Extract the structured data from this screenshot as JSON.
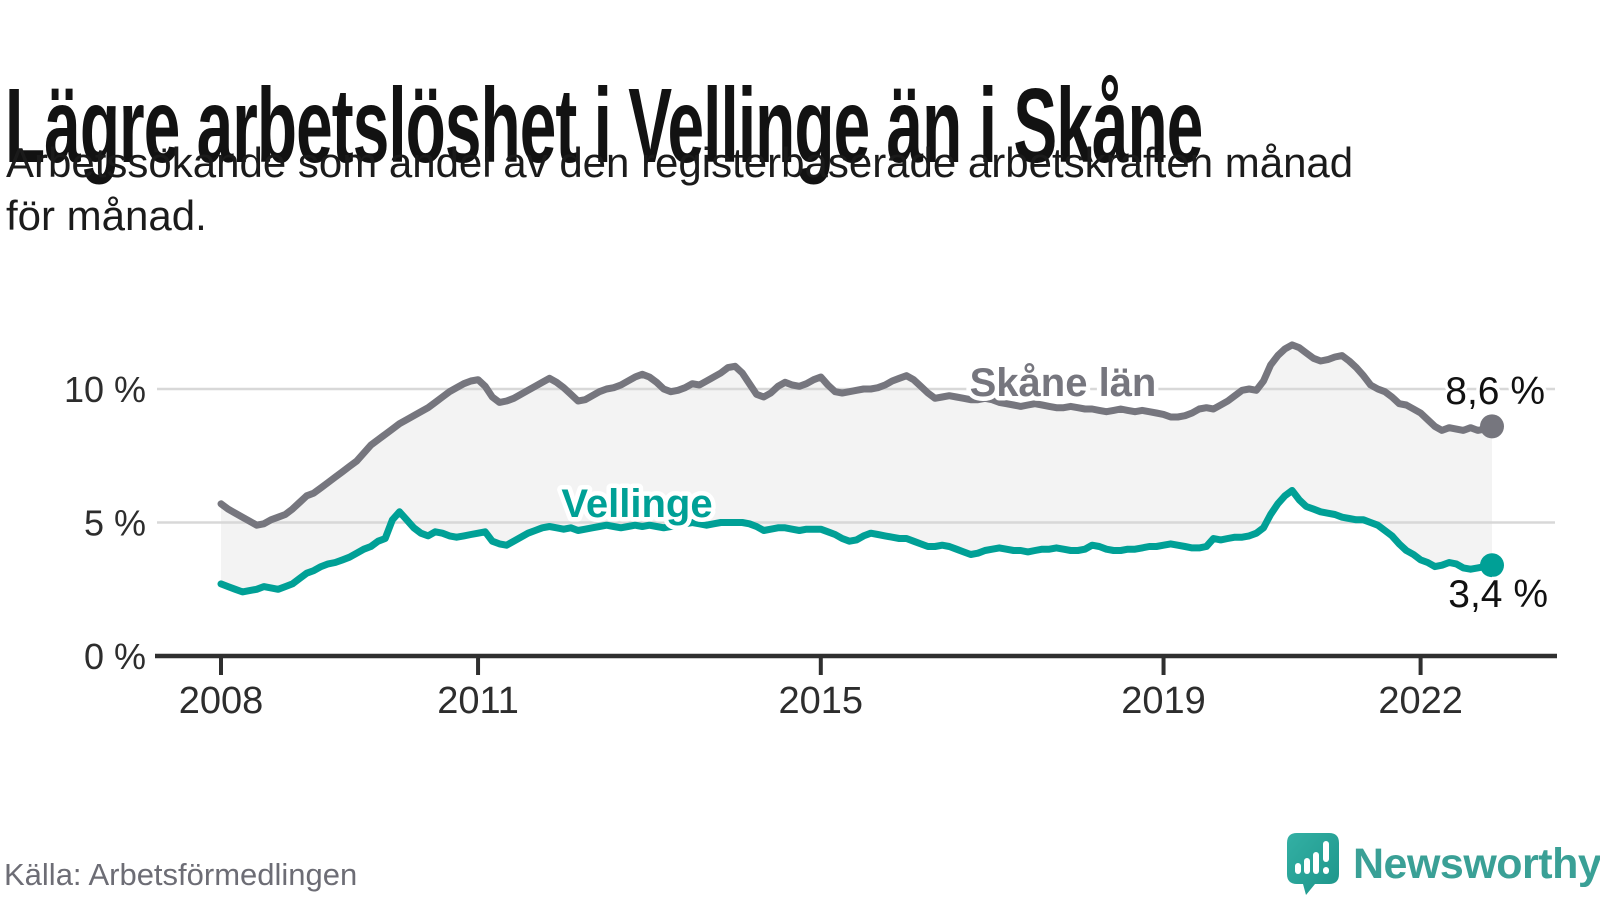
{
  "header": {
    "title": "Lägre arbetslöshet i Vellinge än i Skåne",
    "subtitle_lines": [
      "Arbetssökande som andel av den registerbaserade arbetskraften månad",
      "för månad."
    ]
  },
  "footer": {
    "source": "Källa: Arbetsförmedlingen",
    "brand_name": "Newsworthy"
  },
  "colors": {
    "skane_line": "#76767e",
    "vellinge_line": "#00a096",
    "fill_between": "#f3f3f3",
    "gridline": "#d8d8d8",
    "axis": "#2f2f2f",
    "tick_label": "#2d2d2d",
    "end_label": "#111111",
    "brand_teal": "#3aa096"
  },
  "chart_data": {
    "type": "line",
    "title": "Lägre arbetslöshet i Vellinge än i Skåne",
    "ylabel": "",
    "xlabel": "",
    "frequency": "monthly",
    "x_start": "2008-01",
    "x_end": "2022-11",
    "ylim": [
      0,
      14
    ],
    "grid": "horizontal",
    "legend": "inline-labels",
    "x_ticks": [
      {
        "year": 2008,
        "label": "2008"
      },
      {
        "year": 2011,
        "label": "2011"
      },
      {
        "year": 2015,
        "label": "2015"
      },
      {
        "year": 2019,
        "label": "2019"
      },
      {
        "year": 2022,
        "label": "2022"
      }
    ],
    "y_ticks": [
      {
        "value": 0,
        "label": "0 %"
      },
      {
        "value": 5,
        "label": "5 %"
      },
      {
        "value": 10,
        "label": "10 %"
      }
    ],
    "series": [
      {
        "name": "Skåne län",
        "color": "#76767e",
        "end_value": 8.6,
        "end_label": "8,6 %",
        "values": [
          5.7,
          5.5,
          5.35,
          5.2,
          5.05,
          4.9,
          4.95,
          5.1,
          5.2,
          5.3,
          5.5,
          5.75,
          6.0,
          6.1,
          6.3,
          6.5,
          6.7,
          6.9,
          7.1,
          7.3,
          7.6,
          7.9,
          8.1,
          8.3,
          8.5,
          8.7,
          8.85,
          9.0,
          9.15,
          9.3,
          9.5,
          9.7,
          9.9,
          10.05,
          10.2,
          10.3,
          10.35,
          10.1,
          9.7,
          9.5,
          9.55,
          9.65,
          9.8,
          9.95,
          10.1,
          10.25,
          10.4,
          10.25,
          10.05,
          9.8,
          9.55,
          9.6,
          9.75,
          9.9,
          10.0,
          10.05,
          10.15,
          10.3,
          10.45,
          10.55,
          10.45,
          10.25,
          10.0,
          9.9,
          9.95,
          10.05,
          10.2,
          10.15,
          10.3,
          10.45,
          10.6,
          10.8,
          10.85,
          10.6,
          10.2,
          9.8,
          9.7,
          9.85,
          10.1,
          10.25,
          10.15,
          10.1,
          10.2,
          10.35,
          10.45,
          10.15,
          9.9,
          9.85,
          9.9,
          9.95,
          10.0,
          10.0,
          10.05,
          10.15,
          10.3,
          10.4,
          10.5,
          10.35,
          10.1,
          9.85,
          9.65,
          9.7,
          9.75,
          9.7,
          9.65,
          9.6,
          9.6,
          9.65,
          9.6,
          9.5,
          9.45,
          9.4,
          9.35,
          9.4,
          9.45,
          9.4,
          9.35,
          9.3,
          9.3,
          9.35,
          9.3,
          9.25,
          9.25,
          9.2,
          9.15,
          9.2,
          9.25,
          9.2,
          9.15,
          9.2,
          9.15,
          9.1,
          9.05,
          8.95,
          8.95,
          9.0,
          9.1,
          9.25,
          9.3,
          9.25,
          9.4,
          9.55,
          9.75,
          9.95,
          10.0,
          9.95,
          10.3,
          10.9,
          11.25,
          11.5,
          11.65,
          11.55,
          11.35,
          11.15,
          11.05,
          11.1,
          11.2,
          11.25,
          11.05,
          10.8,
          10.5,
          10.15,
          10.0,
          9.9,
          9.7,
          9.45,
          9.4,
          9.25,
          9.1,
          8.85,
          8.6,
          8.45,
          8.55,
          8.5,
          8.45,
          8.55,
          8.45,
          8.5,
          8.6
        ]
      },
      {
        "name": "Vellinge",
        "color": "#00a096",
        "end_value": 3.4,
        "end_label": "3,4 %",
        "values": [
          2.7,
          2.6,
          2.5,
          2.4,
          2.45,
          2.5,
          2.6,
          2.55,
          2.5,
          2.6,
          2.7,
          2.9,
          3.1,
          3.2,
          3.35,
          3.45,
          3.5,
          3.6,
          3.7,
          3.85,
          4.0,
          4.1,
          4.3,
          4.4,
          5.1,
          5.4,
          5.1,
          4.8,
          4.6,
          4.5,
          4.65,
          4.6,
          4.5,
          4.45,
          4.5,
          4.55,
          4.6,
          4.65,
          4.3,
          4.2,
          4.15,
          4.3,
          4.45,
          4.6,
          4.7,
          4.8,
          4.85,
          4.8,
          4.75,
          4.8,
          4.7,
          4.75,
          4.8,
          4.85,
          4.9,
          4.85,
          4.8,
          4.85,
          4.9,
          4.85,
          4.9,
          4.85,
          4.8,
          4.85,
          4.9,
          4.95,
          5.0,
          4.95,
          4.9,
          4.95,
          5.0,
          5.0,
          5.0,
          5.0,
          4.95,
          4.85,
          4.7,
          4.75,
          4.8,
          4.8,
          4.75,
          4.7,
          4.75,
          4.75,
          4.75,
          4.65,
          4.55,
          4.4,
          4.3,
          4.35,
          4.5,
          4.6,
          4.55,
          4.5,
          4.45,
          4.4,
          4.4,
          4.3,
          4.2,
          4.1,
          4.1,
          4.15,
          4.1,
          4.0,
          3.9,
          3.8,
          3.85,
          3.95,
          4.0,
          4.05,
          4.0,
          3.95,
          3.95,
          3.9,
          3.95,
          4.0,
          4.0,
          4.05,
          4.0,
          3.95,
          3.95,
          4.0,
          4.15,
          4.1,
          4.0,
          3.95,
          3.95,
          4.0,
          4.0,
          4.05,
          4.1,
          4.1,
          4.15,
          4.2,
          4.15,
          4.1,
          4.05,
          4.05,
          4.1,
          4.4,
          4.35,
          4.4,
          4.45,
          4.45,
          4.5,
          4.6,
          4.8,
          5.3,
          5.7,
          6.0,
          6.2,
          5.85,
          5.6,
          5.5,
          5.4,
          5.35,
          5.3,
          5.2,
          5.15,
          5.1,
          5.1,
          5.0,
          4.9,
          4.7,
          4.5,
          4.2,
          3.95,
          3.8,
          3.6,
          3.5,
          3.35,
          3.4,
          3.5,
          3.45,
          3.3,
          3.25,
          3.3,
          3.35,
          3.4
        ]
      }
    ]
  }
}
